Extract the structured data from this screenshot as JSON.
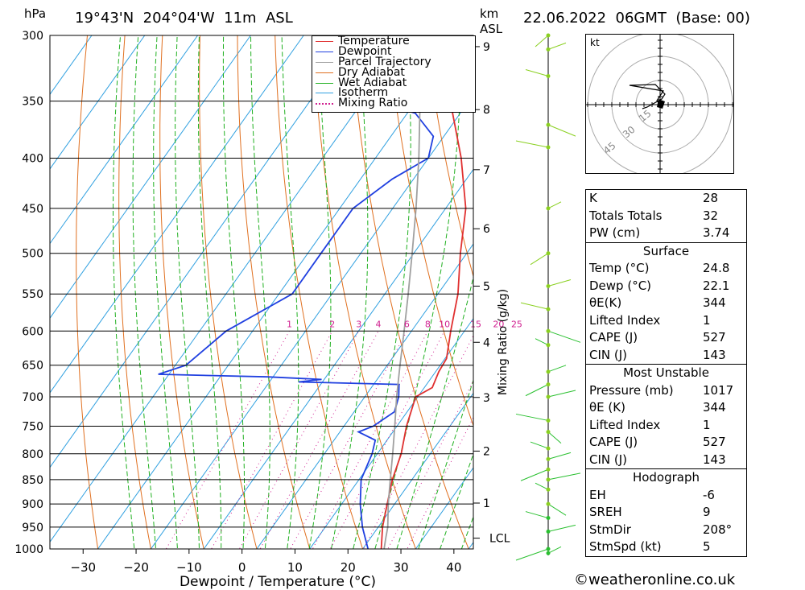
{
  "header": {
    "hpa_unit": "hPa",
    "location": "19°43'N  204°04'W  11m  ASL",
    "km_unit": "km",
    "asl_label": "ASL",
    "datetime": "22.06.2022  06GMT  (Base: 00)"
  },
  "chart_data": {
    "type": "line",
    "xlabel": "Dewpoint / Temperature (°C)",
    "x_ticks": [
      -30,
      -20,
      -10,
      0,
      10,
      20,
      30,
      40
    ],
    "pressure_levels": [
      1000,
      950,
      900,
      850,
      800,
      750,
      700,
      650,
      600,
      550,
      500,
      450,
      400,
      350,
      300
    ],
    "km_ticks": [
      "1",
      "2",
      "3",
      "4",
      "5",
      "6",
      "7",
      "8",
      "9"
    ],
    "lcl_label": "LCL",
    "mixing_ratio_label": "Mixing Ratio (g/kg)",
    "mixing_ratio_ticks": [
      "1",
      "2",
      "3",
      "4",
      "6",
      "8",
      "10",
      "15",
      "20",
      "25"
    ],
    "mixing_ratio_values": [
      1,
      2,
      3,
      4,
      6,
      8,
      10,
      15,
      20,
      25
    ],
    "colors": {
      "temperature": "#e03030",
      "dewpoint": "#2040e0",
      "parcel": "#a0a0a0",
      "dry_adiabat": "#e07020",
      "wet_adiabat": "#20b020",
      "isotherm": "#30a0e0",
      "mixing_ratio": "#d02090"
    },
    "series": [
      {
        "name": "Temperature",
        "points": [
          [
            1017,
            24.8
          ],
          [
            1000,
            23.5
          ],
          [
            950,
            20.8
          ],
          [
            900,
            18.6
          ],
          [
            850,
            16.3
          ],
          [
            800,
            14.5
          ],
          [
            750,
            11.8
          ],
          [
            700,
            9.6
          ],
          [
            685,
            11.5
          ],
          [
            660,
            10.6
          ],
          [
            640,
            10.3
          ],
          [
            600,
            7.4
          ],
          [
            550,
            3.8
          ],
          [
            500,
            -1.2
          ],
          [
            450,
            -6.2
          ],
          [
            400,
            -13.8
          ],
          [
            350,
            -23.5
          ],
          [
            320,
            -29.5
          ],
          [
            300,
            -33.5
          ]
        ]
      },
      {
        "name": "Dewpoint",
        "points": [
          [
            1017,
            22.1
          ],
          [
            1000,
            21.0
          ],
          [
            950,
            17.0
          ],
          [
            900,
            13.5
          ],
          [
            850,
            10.4
          ],
          [
            800,
            9.0
          ],
          [
            775,
            7.8
          ],
          [
            760,
            3.5
          ],
          [
            750,
            5.5
          ],
          [
            725,
            7.6
          ],
          [
            700,
            6.4
          ],
          [
            680,
            4.8
          ],
          [
            676,
            -14.5
          ],
          [
            672,
            -10.5
          ],
          [
            668,
            -21.0
          ],
          [
            664,
            -42.0
          ],
          [
            650,
            -38.0
          ],
          [
            600,
            -35.0
          ],
          [
            550,
            -27.5
          ],
          [
            500,
            -27.5
          ],
          [
            450,
            -27.5
          ],
          [
            420,
            -24.0
          ],
          [
            400,
            -20.0
          ],
          [
            380,
            -22.0
          ],
          [
            360,
            -28.5
          ],
          [
            355,
            -33.0
          ],
          [
            345,
            -35.0
          ],
          [
            330,
            -35.0
          ],
          [
            320,
            -30.0
          ],
          [
            305,
            -30.0
          ],
          [
            300,
            -30.5
          ]
        ]
      },
      {
        "name": "Parcel Trajectory",
        "points": [
          [
            1017,
            24.8
          ],
          [
            975,
            22.9
          ],
          [
            950,
            21.8
          ],
          [
            900,
            18.8
          ],
          [
            850,
            15.9
          ],
          [
            800,
            12.9
          ],
          [
            750,
            9.6
          ],
          [
            700,
            6.0
          ],
          [
            650,
            2.4
          ],
          [
            600,
            -1.4
          ],
          [
            550,
            -5.6
          ],
          [
            500,
            -10.3
          ],
          [
            450,
            -15.6
          ],
          [
            400,
            -21.8
          ],
          [
            350,
            -29.2
          ],
          [
            300,
            -38.2
          ]
        ]
      }
    ]
  },
  "legend": {
    "items": [
      {
        "label": "Temperature",
        "color": "#e03030",
        "style": "solid"
      },
      {
        "label": "Dewpoint",
        "color": "#2040e0",
        "style": "solid"
      },
      {
        "label": "Parcel Trajectory",
        "color": "#a0a0a0",
        "style": "solid"
      },
      {
        "label": "Dry Adiabat",
        "color": "#e07020",
        "style": "solid"
      },
      {
        "label": "Wet Adiabat",
        "color": "#20b020",
        "style": "solid"
      },
      {
        "label": "Isotherm",
        "color": "#30a0e0",
        "style": "solid"
      },
      {
        "label": "Mixing Ratio",
        "color": "#d02090",
        "style": "dotted"
      }
    ]
  },
  "hodograph": {
    "unit": "kt",
    "ring_labels": [
      "15",
      "30",
      "45"
    ]
  },
  "indices": [
    {
      "label": "K",
      "value": "28"
    },
    {
      "label": "Totals Totals",
      "value": "32"
    },
    {
      "label": "PW (cm)",
      "value": "3.74"
    }
  ],
  "surface": {
    "title": "Surface",
    "rows": [
      {
        "label": "Temp (°C)",
        "value": "24.8"
      },
      {
        "label": "Dewp (°C)",
        "value": "22.1"
      },
      {
        "label": "θE(K)",
        "value": "344"
      },
      {
        "label": "Lifted Index",
        "value": "1"
      },
      {
        "label": "CAPE (J)",
        "value": "527"
      },
      {
        "label": "CIN (J)",
        "value": "143"
      }
    ]
  },
  "most_unstable": {
    "title": "Most Unstable",
    "rows": [
      {
        "label": "Pressure (mb)",
        "value": "1017"
      },
      {
        "label": "θE (K)",
        "value": "344"
      },
      {
        "label": "Lifted Index",
        "value": "1"
      },
      {
        "label": "CAPE (J)",
        "value": "527"
      },
      {
        "label": "CIN (J)",
        "value": "143"
      }
    ]
  },
  "hodograph_stats": {
    "title": "Hodograph",
    "rows": [
      {
        "label": "EH",
        "value": "-6"
      },
      {
        "label": "SREH",
        "value": "9"
      },
      {
        "label": "StmDir",
        "value": "208°"
      },
      {
        "label": "StmSpd (kt)",
        "value": "5"
      }
    ]
  },
  "credit": "©weatheronline.co.uk"
}
